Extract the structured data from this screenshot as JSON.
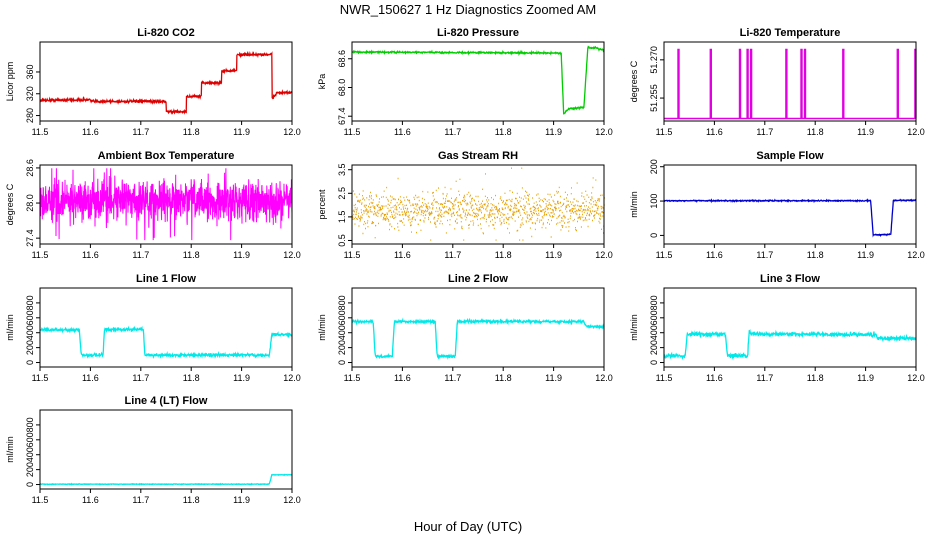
{
  "figure": {
    "title": "NWR_150627  1 Hz Diagnostics Zoomed AM",
    "xlabel": "Hour of Day (UTC)"
  },
  "chart_data": [
    {
      "type": "line",
      "title": "Li-820 CO2",
      "ylabel": "Licor ppm",
      "color": "#dd0000",
      "xlim": [
        11.5,
        12.0
      ],
      "ylim": [
        270,
        415
      ],
      "xticks": [
        "11.5",
        "11.6",
        "11.7",
        "11.8",
        "11.9",
        "12.0"
      ],
      "yticks": [
        280,
        320,
        360
      ],
      "x": [
        11.5,
        11.6,
        11.6,
        11.75,
        11.75,
        11.79,
        11.79,
        11.82,
        11.82,
        11.86,
        11.86,
        11.89,
        11.89,
        11.96,
        11.96,
        11.97,
        12.0
      ],
      "y": [
        308,
        309,
        306,
        306,
        287,
        287,
        315,
        315,
        340,
        340,
        362,
        362,
        392,
        392,
        310,
        322,
        322
      ],
      "noise": 1.2
    },
    {
      "type": "line",
      "title": "Li-820 Pressure",
      "ylabel": "kPa",
      "color": "#00cc00",
      "xlim": [
        11.5,
        12.0
      ],
      "ylim": [
        67.3,
        68.95
      ],
      "xticks": [
        "11.5",
        "11.6",
        "11.7",
        "11.8",
        "11.9",
        "12.0"
      ],
      "yticks": [
        "67.4",
        "68.0",
        "68.6"
      ],
      "x": [
        11.5,
        11.9,
        11.915,
        11.92,
        11.93,
        11.94,
        11.955,
        11.96,
        11.968,
        11.975,
        11.985,
        11.99,
        12.0
      ],
      "y": [
        68.74,
        68.72,
        68.72,
        67.45,
        67.56,
        67.56,
        67.58,
        67.58,
        68.84,
        68.82,
        68.84,
        68.79,
        68.79
      ],
      "noise": 0.008
    },
    {
      "type": "line",
      "title": "Li-820 Temperature",
      "ylabel": "degrees C",
      "color": "#e000e0",
      "xlim": [
        11.5,
        12.0
      ],
      "ylim": [
        51.246,
        51.277
      ],
      "xticks": [
        "11.5",
        "11.6",
        "11.7",
        "11.8",
        "11.9",
        "12.0"
      ],
      "yticks": [
        "51.255",
        "51.270"
      ],
      "baseline": 51.247,
      "spike": 51.274,
      "spikes": [
        11.528,
        11.592,
        11.65,
        11.665,
        11.672,
        11.742,
        11.772,
        11.779,
        11.855,
        11.963,
        11.998
      ]
    },
    {
      "type": "line",
      "title": "Ambient Box Temperature",
      "ylabel": "degrees C",
      "color": "#ff00ff",
      "xlim": [
        11.5,
        12.0
      ],
      "ylim": [
        27.3,
        28.65
      ],
      "xticks": [
        "11.5",
        "11.6",
        "11.7",
        "11.8",
        "11.9",
        "12.0"
      ],
      "yticks": [
        "27.4",
        "28.0",
        "28.6"
      ],
      "mean": 28.04,
      "noise": 0.16
    },
    {
      "type": "scatter",
      "title": "Gas Stream RH",
      "ylabel": "percent",
      "color": "#e8a000",
      "xlim": [
        11.5,
        12.0
      ],
      "ylim": [
        0.35,
        3.7
      ],
      "xticks": [
        "11.5",
        "11.6",
        "11.7",
        "11.8",
        "11.9",
        "12.0"
      ],
      "yticks": [
        "0.5",
        "1.5",
        "2.5",
        "3.5"
      ],
      "mean": 1.78,
      "noise": 0.35
    },
    {
      "type": "line",
      "title": "Sample Flow",
      "ylabel": "ml/min",
      "color": "#0000cc",
      "xlim": [
        11.5,
        12.0
      ],
      "ylim": [
        -25,
        205
      ],
      "xticks": [
        "11.5",
        "11.6",
        "11.7",
        "11.8",
        "11.9",
        "12.0"
      ],
      "yticks": [
        0,
        100,
        200
      ],
      "x": [
        11.5,
        11.91,
        11.915,
        11.95,
        11.955,
        12.0
      ],
      "y": [
        101,
        101,
        2,
        2,
        102,
        102
      ],
      "noise": 0.8
    },
    {
      "type": "line",
      "title": "Line 1 Flow",
      "ylabel": "ml/min",
      "color": "#00e8e8",
      "xlim": [
        11.5,
        12.0
      ],
      "ylim": [
        -60,
        1000
      ],
      "xticks": [
        "11.5",
        "11.6",
        "11.7",
        "11.8",
        "11.9",
        "12.0"
      ],
      "yticks": [
        0,
        200,
        400,
        600,
        800
      ],
      "x": [
        11.5,
        11.578,
        11.582,
        11.625,
        11.628,
        11.705,
        11.708,
        11.955,
        11.96,
        12.0
      ],
      "y": [
        440,
        440,
        100,
        100,
        445,
        445,
        100,
        100,
        380,
        370
      ],
      "noise": 10
    },
    {
      "type": "line",
      "title": "Line 2 Flow",
      "ylabel": "ml/min",
      "color": "#00e8e8",
      "xlim": [
        11.5,
        12.0
      ],
      "ylim": [
        -60,
        1000
      ],
      "xticks": [
        "11.5",
        "11.6",
        "11.7",
        "11.8",
        "11.9",
        "12.0"
      ],
      "yticks": [
        0,
        200,
        400,
        600,
        800
      ],
      "x": [
        11.5,
        11.542,
        11.546,
        11.58,
        11.584,
        11.665,
        11.669,
        11.705,
        11.709,
        11.96,
        11.965,
        12.0
      ],
      "y": [
        550,
        550,
        85,
        85,
        550,
        550,
        85,
        85,
        550,
        550,
        480,
        480
      ],
      "noise": 9
    },
    {
      "type": "line",
      "title": "Line 3 Flow",
      "ylabel": "ml/min",
      "color": "#00e8e8",
      "xlim": [
        11.5,
        12.0
      ],
      "ylim": [
        -60,
        1000
      ],
      "xticks": [
        "11.5",
        "11.6",
        "11.7",
        "11.8",
        "11.9",
        "12.0"
      ],
      "yticks": [
        0,
        200,
        400,
        600,
        800
      ],
      "x": [
        11.5,
        11.542,
        11.546,
        11.622,
        11.626,
        11.666,
        11.669,
        11.672,
        11.92,
        11.925,
        12.0
      ],
      "y": [
        90,
        90,
        380,
        380,
        90,
        90,
        440,
        385,
        375,
        325,
        325
      ],
      "noise": 14
    },
    {
      "type": "line",
      "title": "Line 4 (LT) Flow",
      "ylabel": "ml/min",
      "color": "#00e8e8",
      "xlim": [
        11.5,
        12.0
      ],
      "ylim": [
        -60,
        1000
      ],
      "xticks": [
        "11.5",
        "11.6",
        "11.7",
        "11.8",
        "11.9",
        "12.0"
      ],
      "yticks": [
        0,
        200,
        400,
        600,
        800
      ],
      "x": [
        11.5,
        11.955,
        11.96,
        12.0
      ],
      "y": [
        5,
        5,
        130,
        130
      ],
      "noise": 2
    }
  ]
}
